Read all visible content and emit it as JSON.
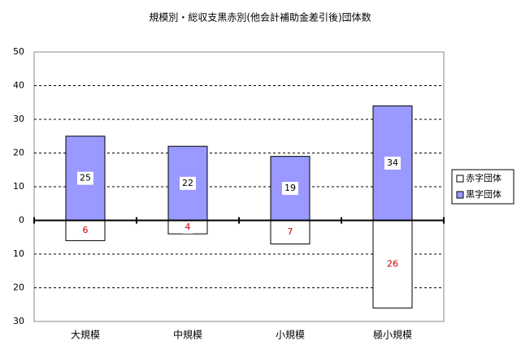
{
  "chart_data": {
    "type": "bar",
    "title": "規模別・総収支黒赤別(他会計補助金差引後)団体数",
    "categories": [
      "大規模",
      "中規模",
      "小規模",
      "極小規模"
    ],
    "series": [
      {
        "name": "赤字団体",
        "color": "#ffffff",
        "label_color": "#cc0000",
        "values": [
          -6,
          -4,
          -7,
          -26
        ],
        "value_labels": [
          "6",
          "4",
          "7",
          "26"
        ]
      },
      {
        "name": "黒字団体",
        "color": "#9999ff",
        "label_color": "#000000",
        "values": [
          25,
          22,
          19,
          34
        ]
      }
    ],
    "ylim": [
      -30,
      50
    ],
    "yticks": [
      {
        "value": -30,
        "label": "30"
      },
      {
        "value": -20,
        "label": "20"
      },
      {
        "value": -10,
        "label": "10"
      },
      0,
      10,
      20,
      30,
      40,
      50
    ],
    "grid": true,
    "legend": "right"
  }
}
